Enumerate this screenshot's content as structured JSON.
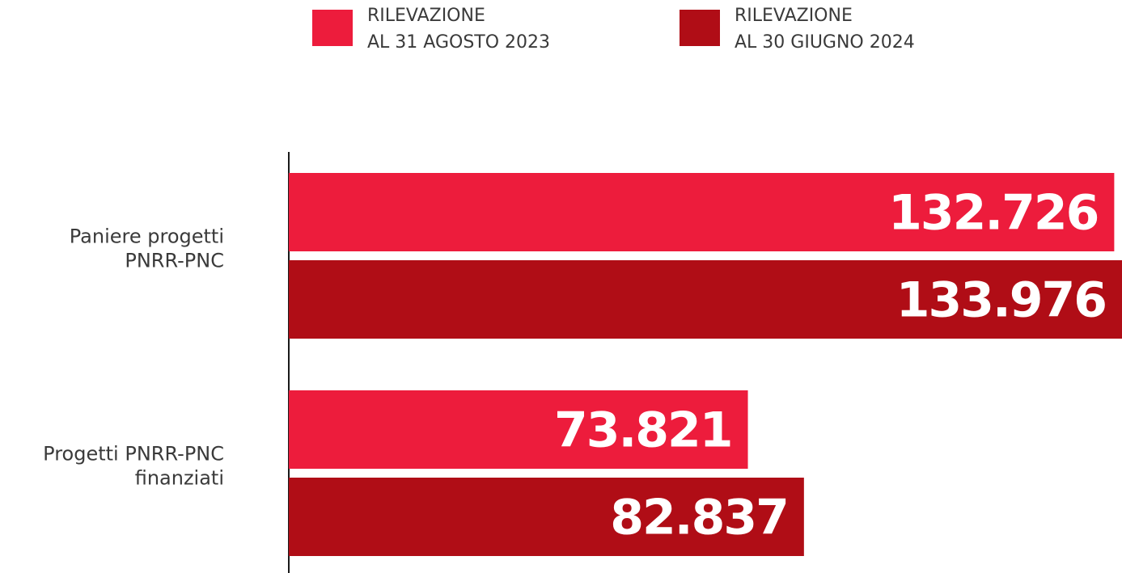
{
  "chart_data": {
    "type": "bar",
    "orientation": "horizontal",
    "categories": [
      [
        "Paniere progetti",
        "PNRR-PNC"
      ],
      [
        "Progetti PNRR-PNC",
        "finanziati"
      ]
    ],
    "series": [
      {
        "name_lines": [
          "RILEVAZIONE",
          "AL 31 AGOSTO 2023"
        ],
        "color": "#ed1c3c",
        "values": [
          132726,
          73821
        ],
        "labels": [
          "132.726",
          "73.821"
        ]
      },
      {
        "name_lines": [
          "RILEVAZIONE",
          "AL 30 GIUGNO 2024"
        ],
        "color": "#b00d16",
        "values": [
          133976,
          82837
        ],
        "labels": [
          "133.976",
          "82.837"
        ]
      }
    ],
    "xlim": [
      0,
      133976
    ],
    "legend_position": "top",
    "grid": false
  }
}
